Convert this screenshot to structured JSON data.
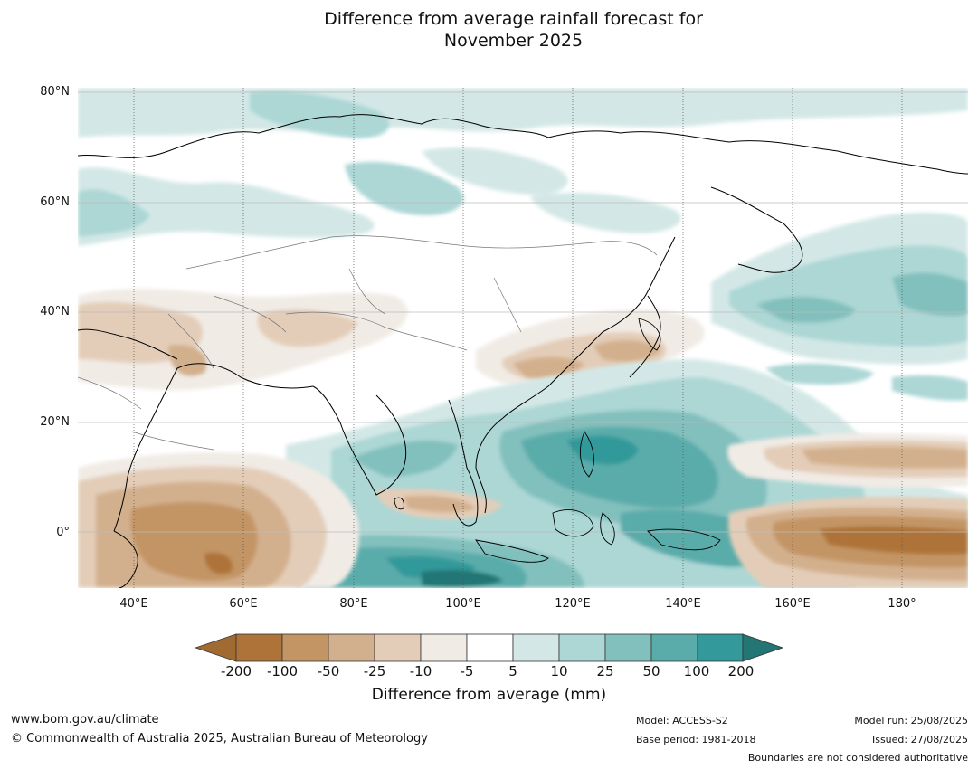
{
  "title_line1": "Difference from average rainfall forecast for",
  "title_line2": "November 2025",
  "lat_labels": [
    "80°N",
    "60°N",
    "40°N",
    "20°N",
    "0°"
  ],
  "lon_labels": [
    "40°E",
    "60°E",
    "80°E",
    "100°E",
    "120°E",
    "140°E",
    "160°E",
    "180°"
  ],
  "colorbar": {
    "ticks": [
      "-200",
      "-100",
      "-50",
      "-25",
      "-10",
      "-5",
      "5",
      "10",
      "25",
      "50",
      "100",
      "200"
    ],
    "colors": [
      "#a06a30",
      "#ae7338",
      "#c39565",
      "#d3b08d",
      "#e3cdb8",
      "#f1ebe5",
      "#ffffff",
      "#d3e8e6",
      "#acd7d5",
      "#82c0bd",
      "#5aacaa",
      "#33999a",
      "#247674"
    ],
    "label": "Difference from average (mm)"
  },
  "footer": {
    "website": "www.bom.gov.au/climate",
    "copyright": "© Commonwealth of Australia 2025, Australian Bureau of Meteorology",
    "model": "Model: ACCESS-S2",
    "base_period": "Base period: 1981-2018",
    "model_run": "Model run: 25/08/2025",
    "issued": "Issued: 27/08/2025",
    "disclaimer": "Boundaries are not considered authoritative"
  }
}
